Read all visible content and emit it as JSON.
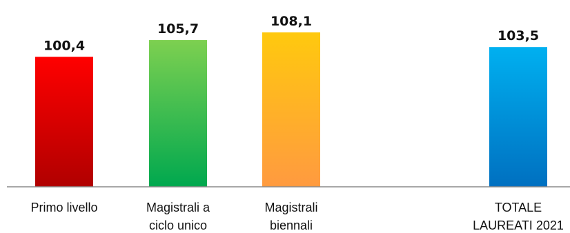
{
  "chart_data": {
    "type": "bar",
    "title": "",
    "xlabel": "",
    "ylabel": "",
    "ylim": [
      0,
      110
    ],
    "grid": false,
    "categories": [
      [
        "Primo livello"
      ],
      [
        "Magistrali a",
        "ciclo unico"
      ],
      [
        "Magistrali",
        "biennali"
      ],
      [
        "TOTALE",
        "LAUREATI 2021"
      ]
    ],
    "values": [
      100.4,
      105.7,
      108.1,
      103.5
    ],
    "value_labels": [
      "100,4",
      "105,7",
      "108,1",
      "103,5"
    ],
    "colors": [
      {
        "top": "#ff0000",
        "bottom": "#b00000"
      },
      {
        "top": "#7dd050",
        "bottom": "#00a84f"
      },
      {
        "top": "#ffc90e",
        "bottom": "#ff9a40"
      },
      {
        "top": "#00b0f0",
        "bottom": "#0070c0"
      }
    ]
  }
}
